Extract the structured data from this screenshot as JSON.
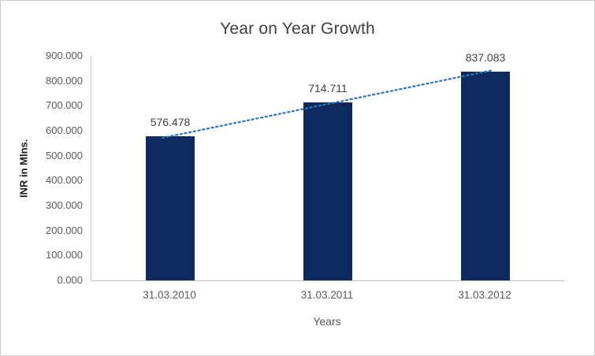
{
  "chart_data": {
    "type": "bar",
    "title": "Year on Year Growth",
    "xlabel": "Years",
    "ylabel": "INR in Mlns.",
    "categories": [
      "31.03.2010",
      "31.03.2011",
      "31.03.2012"
    ],
    "values": [
      576.478,
      714.711,
      837.083
    ],
    "value_labels": [
      "576.478",
      "714.711",
      "837.083"
    ],
    "ylim": [
      0,
      900
    ],
    "ytick_labels": [
      "0.000",
      "100.000",
      "200.000",
      "300.000",
      "400.000",
      "500.000",
      "600.000",
      "700.000",
      "800.000",
      "900.000"
    ],
    "grid": false,
    "legend": "none",
    "bar_color": "#0e2a5e",
    "trendline": {
      "style": "dotted",
      "color": "#2e75b6"
    },
    "axis_line_color": "#bfbfbf"
  }
}
